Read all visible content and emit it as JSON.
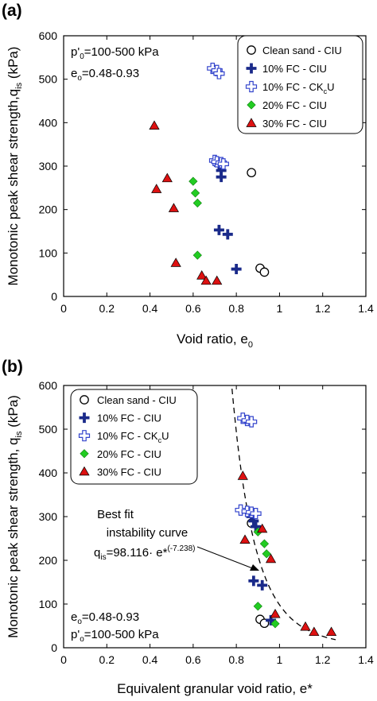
{
  "chart_data": [
    {
      "type": "scatter",
      "panel_label": "(a)",
      "xlabel": "Void ratio, e",
      "xlabel_sub": "0",
      "ylabel": "Monotonic peak shear strength,q",
      "ylabel_sub": "is",
      "ylabel_tail": " (kPa)",
      "xlim": [
        0,
        1.4
      ],
      "ylim": [
        0,
        600
      ],
      "xticks": [
        "0",
        "0.2",
        "0.4",
        "0.6",
        "0.8",
        "1",
        "1.2",
        "1.4"
      ],
      "yticks": [
        "0",
        "100",
        "200",
        "300",
        "400",
        "500",
        "600"
      ],
      "legend_position": "top-right",
      "annotations": {
        "line1": {
          "pre": "p'",
          "sub": "0",
          "post": "=100-500 kPa"
        },
        "line2": {
          "pre": "e",
          "sub": "o",
          "post": "=0.48-0.93"
        }
      },
      "series": [
        {
          "name": "Clean sand - CIU",
          "marker": "circle-open",
          "color": "#000000",
          "x": [
            0.87,
            0.91,
            0.93
          ],
          "y": [
            285,
            65,
            56
          ]
        },
        {
          "name": "10% FC - CIU",
          "marker": "plus-filled",
          "color": "#1a2a8a",
          "x": [
            0.72,
            0.73,
            0.73,
            0.72,
            0.76,
            0.8
          ],
          "y": [
            302,
            290,
            275,
            153,
            143,
            63
          ]
        },
        {
          "name": "10% FC - CKcU",
          "name_pre": "10% FC - CK",
          "name_sub": "c",
          "name_post": "U",
          "marker": "plus-open",
          "color": "#3344cc",
          "x": [
            0.69,
            0.71,
            0.72,
            0.7,
            0.71,
            0.73,
            0.74
          ],
          "y": [
            525,
            520,
            513,
            313,
            310,
            308,
            305
          ]
        },
        {
          "name": "20% FC - CIU",
          "marker": "diamond",
          "color": "#22cc22",
          "x": [
            0.6,
            0.61,
            0.62,
            0.62
          ],
          "y": [
            265,
            238,
            215,
            95
          ]
        },
        {
          "name": "30% FC - CIU",
          "marker": "triangle",
          "color": "#dd1111",
          "x": [
            0.42,
            0.43,
            0.48,
            0.51,
            0.52,
            0.64,
            0.66,
            0.71
          ],
          "y": [
            393,
            247,
            272,
            203,
            77,
            48,
            36,
            36
          ]
        }
      ]
    },
    {
      "type": "scatter",
      "panel_label": "(b)",
      "xlabel": "Equivalent granular void ratio, e*",
      "ylabel": "Monotonic peak shear strength, q",
      "ylabel_sub": "is",
      "ylabel_tail": " (kPa)",
      "xlim": [
        0,
        1.4
      ],
      "ylim": [
        0,
        600
      ],
      "xticks": [
        "0",
        "0.2",
        "0.4",
        "0.6",
        "0.8",
        "1",
        "1.2",
        "1.4"
      ],
      "yticks": [
        "0",
        "100",
        "200",
        "300",
        "400",
        "500",
        "600"
      ],
      "legend_position": "top-left",
      "annotations": {
        "fit_line1": "Best fit",
        "fit_line2": "instability curve",
        "fit_eq_pre": "q",
        "fit_eq_sub": "is",
        "fit_eq_main": "=98.116· e*",
        "fit_eq_sup": "(-7.238)",
        "bottom1": {
          "pre": "e",
          "sub": "o",
          "post": "=0.48-0.93"
        },
        "bottom2": {
          "pre": "p'",
          "sub": "o",
          "post": "=100-500 kPa"
        }
      },
      "fit_curve": {
        "name": "Best fit instability curve",
        "a": 98.116,
        "b": -7.238,
        "x_range": [
          0.78,
          1.26
        ],
        "style": "dashed"
      },
      "series": [
        {
          "name": "Clean sand - CIU",
          "marker": "circle-open",
          "color": "#000000",
          "x": [
            0.87,
            0.91,
            0.93
          ],
          "y": [
            285,
            65,
            56
          ]
        },
        {
          "name": "10% FC - CIU",
          "marker": "plus-filled",
          "color": "#1a2a8a",
          "x": [
            0.87,
            0.88,
            0.89,
            0.88,
            0.92,
            0.96
          ],
          "y": [
            300,
            290,
            277,
            153,
            143,
            63
          ]
        },
        {
          "name": "10% FC - CKcU",
          "name_pre": "10% FC - CK",
          "name_sub": "c",
          "name_post": "U",
          "marker": "plus-open",
          "color": "#3344cc",
          "x": [
            0.83,
            0.85,
            0.87,
            0.82,
            0.85,
            0.87,
            0.89
          ],
          "y": [
            525,
            520,
            517,
            315,
            312,
            310,
            307
          ]
        },
        {
          "name": "20% FC - CIU",
          "marker": "diamond",
          "color": "#22cc22",
          "x": [
            0.9,
            0.93,
            0.94,
            0.9,
            0.98
          ],
          "y": [
            265,
            238,
            215,
            95,
            55
          ]
        },
        {
          "name": "30% FC - CIU",
          "marker": "triangle",
          "color": "#dd1111",
          "x": [
            0.83,
            0.84,
            0.92,
            0.96,
            0.98,
            1.12,
            1.16,
            1.24
          ],
          "y": [
            393,
            247,
            272,
            203,
            77,
            48,
            36,
            36
          ]
        }
      ]
    }
  ]
}
